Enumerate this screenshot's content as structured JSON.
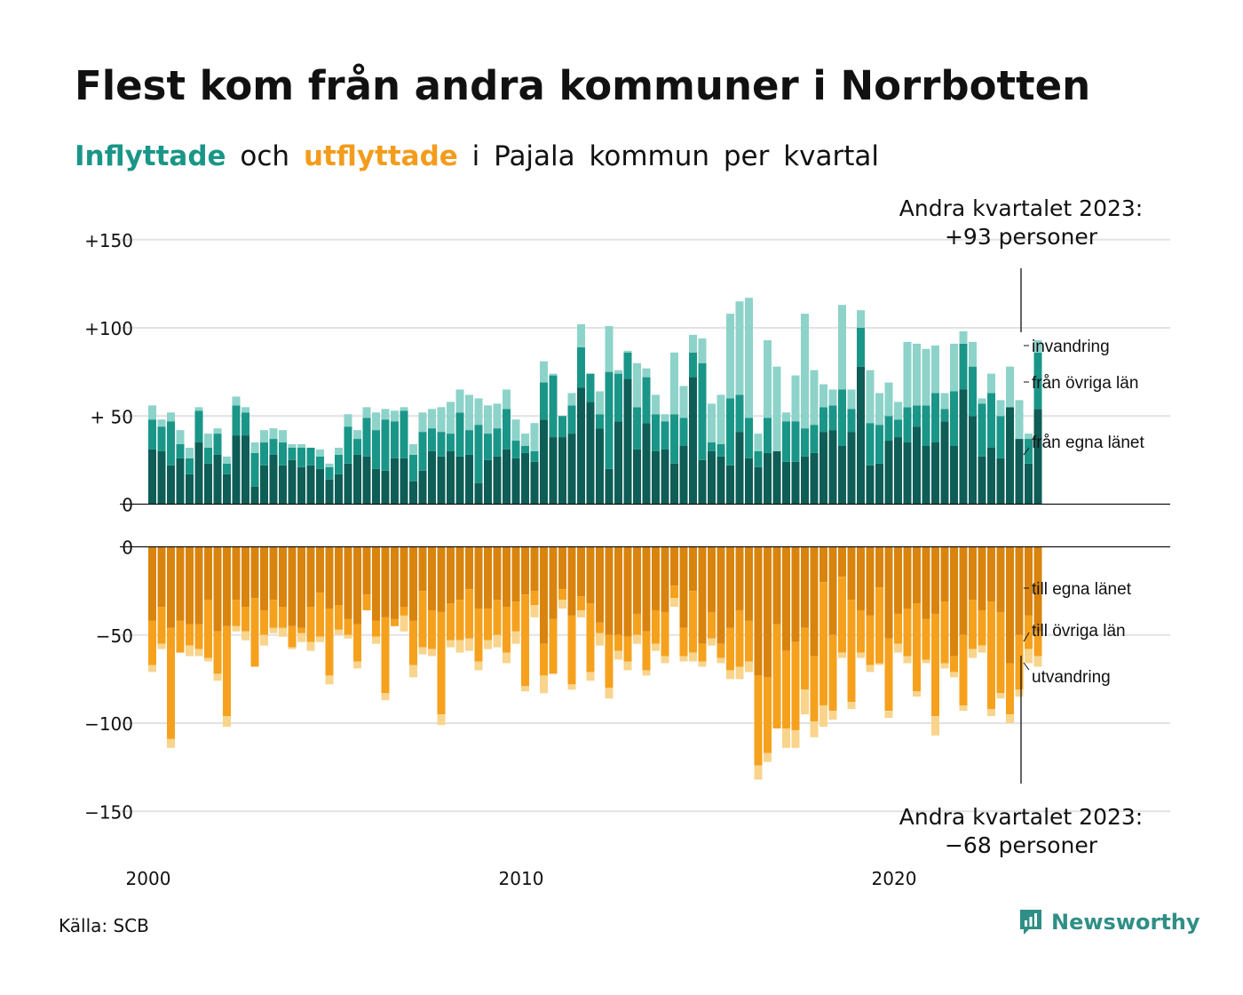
{
  "title": "Flest kom från andra kommuner i Norrbotten",
  "subtitle": {
    "in_word": "Inflyttade",
    "and_word": "och",
    "out_word": "utflyttade",
    "rest": "i Pajala kommun per kvartal"
  },
  "source": "Källa: SCB",
  "brand": "Newsworthy",
  "colors": {
    "in_own": "#0e5d56",
    "in_other": "#1a9688",
    "in_imm": "#8dd3c9",
    "out_own": "#d9840e",
    "out_other": "#f5a11e",
    "out_emi": "#f8d48c"
  },
  "callout_top": [
    "Andra kvartalet 2023:",
    "+93 personer"
  ],
  "callout_bottom": [
    "Andra kvartalet 2023:",
    "−68 personer"
  ],
  "legend_in": [
    "invandring",
    "från övriga län",
    "från egna länet"
  ],
  "legend_out": [
    "till egna länet",
    "till övriga län",
    "utvandring"
  ],
  "chart_data": {
    "type": "bar",
    "title": "Flest kom från andra kommuner i Norrbotten",
    "x_start": "2000 Q1",
    "x_end": "2023 Q2",
    "x_ticks": [
      "2000",
      "2010",
      "2020"
    ],
    "y_ticks_in": [
      "0",
      "+ 50",
      "+100",
      "+150"
    ],
    "y_ticks_out": [
      "0",
      "−50",
      "−100",
      "−150"
    ],
    "ylim_in": [
      0,
      150
    ],
    "ylim_out": [
      -150,
      0
    ],
    "series_in": {
      "own": [
        [
          31,
          30,
          22,
          26
        ],
        [
          17,
          35,
          23,
          28
        ],
        [
          17,
          39,
          39,
          10
        ],
        [
          22,
          28,
          22,
          25
        ],
        [
          21,
          22,
          20,
          14
        ],
        [
          17,
          23,
          28,
          27
        ],
        [
          20,
          19,
          26,
          26
        ],
        [
          13,
          19,
          30,
          27
        ],
        [
          30,
          27,
          28,
          12
        ],
        [
          25,
          27,
          31,
          26
        ],
        [
          29,
          24,
          48,
          38
        ],
        [
          38,
          40,
          66,
          58
        ],
        [
          43,
          20,
          47,
          71
        ],
        [
          31,
          46,
          30,
          31
        ],
        [
          23,
          33,
          72,
          25
        ],
        [
          30,
          27,
          22,
          41
        ],
        [
          26,
          21,
          29,
          30
        ],
        [
          24,
          24,
          27,
          29
        ],
        [
          41,
          42,
          33,
          41
        ],
        [
          78,
          22,
          23,
          36
        ],
        [
          38,
          35,
          44,
          33
        ],
        [
          35,
          47,
          33,
          65
        ],
        [
          50,
          27,
          32,
          26
        ],
        [
          55,
          37,
          23,
          54
        ]
      ],
      "other": [
        [
          17,
          14,
          25,
          8
        ],
        [
          9,
          18,
          9,
          12
        ],
        [
          6,
          17,
          13,
          19
        ],
        [
          13,
          9,
          13,
          7
        ],
        [
          11,
          10,
          7,
          7
        ],
        [
          11,
          21,
          9,
          22
        ],
        [
          22,
          29,
          21,
          27
        ],
        [
          15,
          22,
          13,
          14
        ],
        [
          10,
          25,
          14,
          33
        ],
        [
          15,
          16,
          23,
          10
        ],
        [
          4,
          6,
          21,
          35
        ],
        [
          12,
          16,
          23,
          16
        ],
        [
          8,
          55,
          27,
          15
        ],
        [
          24,
          26,
          21,
          16
        ],
        [
          28,
          16,
          14,
          55
        ],
        [
          5,
          7,
          38,
          21
        ],
        [
          23,
          9,
          20,
          0
        ],
        [
          23,
          23,
          16,
          16
        ],
        [
          14,
          14,
          32,
          13
        ],
        [
          22,
          24,
          22,
          14
        ],
        [
          10,
          20,
          12,
          23
        ],
        [
          28,
          7,
          31,
          26
        ],
        [
          28,
          30,
          31,
          24
        ],
        [
          0,
          0,
          14,
          32
        ]
      ],
      "imm": [
        [
          8,
          4,
          5,
          8
        ],
        [
          6,
          2,
          8,
          3
        ],
        [
          4,
          5,
          3,
          6
        ],
        [
          7,
          6,
          7,
          2
        ],
        [
          2,
          0,
          4,
          2
        ],
        [
          4,
          7,
          5,
          6
        ],
        [
          10,
          6,
          6,
          2
        ],
        [
          6,
          11,
          11,
          14
        ],
        [
          18,
          13,
          20,
          15
        ],
        [
          16,
          14,
          11,
          12
        ],
        [
          7,
          16,
          12,
          1
        ],
        [
          0,
          7,
          13,
          0
        ],
        [
          13,
          26,
          2,
          1
        ],
        [
          25,
          5,
          11,
          4
        ],
        [
          35,
          18,
          10,
          14
        ],
        [
          22,
          28,
          48,
          53
        ],
        [
          68,
          10,
          44,
          48
        ],
        [
          5,
          26,
          65,
          31
        ],
        [
          13,
          9,
          48,
          11
        ],
        [
          10,
          30,
          18,
          19
        ],
        [
          10,
          37,
          35,
          32
        ],
        [
          27,
          9,
          27,
          7
        ],
        [
          14,
          3,
          11,
          9
        ],
        [
          23,
          22,
          3,
          7
        ]
      ]
    },
    "series_out": {
      "own": [
        [
          -42,
          -34,
          -46,
          -42
        ],
        [
          -44,
          -44,
          -30,
          -48
        ],
        [
          -45,
          -30,
          -34,
          -29
        ],
        [
          -36,
          -30,
          -34,
          -45
        ],
        [
          -46,
          -34,
          -26,
          -35
        ],
        [
          -33,
          -41,
          -44,
          -27
        ],
        [
          -42,
          -40,
          -41,
          -34
        ],
        [
          -42,
          -25,
          -36,
          -37
        ],
        [
          -32,
          -30,
          -24,
          -35
        ],
        [
          -35,
          -30,
          -34,
          -31
        ],
        [
          -27,
          -25,
          -55,
          -41
        ],
        [
          -24,
          -39,
          -28,
          -32
        ],
        [
          -43,
          -50,
          -50,
          -51
        ],
        [
          -38,
          -48,
          -36,
          -37
        ],
        [
          -22,
          -46,
          -25,
          -55
        ],
        [
          -37,
          -55,
          -46,
          -36
        ],
        [
          -42,
          -73,
          -74,
          -44
        ],
        [
          -59,
          -54,
          -46,
          -62
        ],
        [
          -20,
          -50,
          -17,
          -30
        ],
        [
          -36,
          -39,
          -23,
          -52
        ],
        [
          -38,
          -35,
          -32,
          -41
        ],
        [
          -38,
          -31,
          -62,
          -50
        ],
        [
          -30,
          -36,
          -31,
          -37
        ],
        [
          -66,
          -50,
          -39,
          -48
        ]
      ],
      "other": [
        [
          -25,
          -21,
          -63,
          -18
        ],
        [
          -12,
          -14,
          -33,
          -24
        ],
        [
          -51,
          -15,
          -14,
          -39
        ],
        [
          -14,
          -16,
          -12,
          -12
        ],
        [
          -3,
          -20,
          -25,
          -38
        ],
        [
          -14,
          -9,
          -21,
          -9
        ],
        [
          -9,
          -43,
          -4,
          -5
        ],
        [
          -25,
          -32,
          -22,
          -58
        ],
        [
          -21,
          -23,
          -28,
          -30
        ],
        [
          -18,
          -20,
          -26,
          -17
        ],
        [
          -52,
          -8,
          -18,
          -31
        ],
        [
          -6,
          -39,
          -8,
          -39
        ],
        [
          -6,
          -30,
          -9,
          -14
        ],
        [
          -12,
          -22,
          -19,
          -25
        ],
        [
          -7,
          -16,
          -35,
          -10
        ],
        [
          -15,
          -8,
          -24,
          -32
        ],
        [
          -23,
          -51,
          -43,
          -59
        ],
        [
          -44,
          -50,
          -35,
          -37
        ],
        [
          -70,
          -43,
          -43,
          -58
        ],
        [
          -24,
          -28,
          -43,
          -41
        ],
        [
          -17,
          -27,
          -50,
          -23
        ],
        [
          -58,
          -35,
          -9,
          -40
        ],
        [
          -28,
          -20,
          -61,
          -46
        ],
        [
          -29,
          -31,
          -19,
          -14
        ]
      ],
      "emi": [
        [
          -4,
          -3,
          -5,
          0
        ],
        [
          -6,
          -4,
          -2,
          -4
        ],
        [
          -6,
          -3,
          -5,
          0
        ],
        [
          -6,
          -3,
          -5,
          -1
        ],
        [
          -5,
          -5,
          -3,
          -5
        ],
        [
          -3,
          -2,
          -4,
          0
        ],
        [
          -4,
          -4,
          0,
          -9
        ],
        [
          -7,
          -4,
          -4,
          -6
        ],
        [
          -4,
          -7,
          -7,
          -5
        ],
        [
          -5,
          -7,
          -6,
          -7
        ],
        [
          -3,
          -7,
          -10,
          0
        ],
        [
          -5,
          -3,
          -4,
          -5
        ],
        [
          -7,
          -6,
          -5,
          -5
        ],
        [
          -5,
          -3,
          -4,
          -4
        ],
        [
          -5,
          -3,
          -5,
          -3
        ],
        [
          -4,
          -3,
          -5,
          -7
        ],
        [
          -6,
          -8,
          -5,
          0
        ],
        [
          -11,
          -10,
          -14,
          -9
        ],
        [
          -12,
          -5,
          -3,
          -4
        ],
        [
          -3,
          -4,
          -1,
          -4
        ],
        [
          -5,
          -4,
          -3,
          -2
        ],
        [
          -11,
          -3,
          -3,
          -3
        ],
        [
          -5,
          -4,
          -4,
          -3
        ],
        [
          -5,
          -4,
          -8,
          -6
        ]
      ]
    }
  }
}
